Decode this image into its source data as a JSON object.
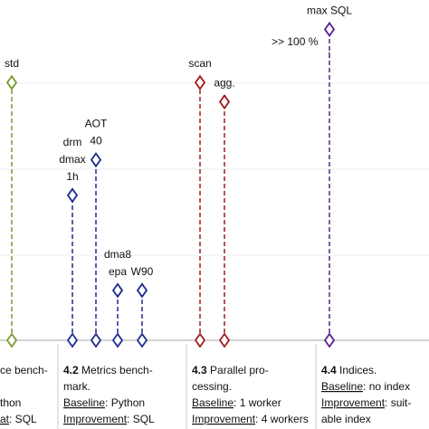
{
  "chart_data": {
    "type": "lollipop",
    "ylim": [
      0,
      100
    ],
    "groups": [
      {
        "color": "#7a9a2e",
        "stems": [
          {
            "label": [
              "std"
            ],
            "value": 80
          }
        ]
      },
      {
        "color": "#1f2a8c",
        "stems": [
          {
            "label": [
              "drm",
              "dmax",
              "1h"
            ],
            "value": 45
          },
          {
            "label": [
              "AOT",
              "40"
            ],
            "value": 56
          },
          {
            "label": [
              "dma8",
              "epa"
            ],
            "value": 15.5
          },
          {
            "label": [
              "W90"
            ],
            "value": 15.5
          }
        ]
      },
      {
        "color": "#a01c1c",
        "stems": [
          {
            "label": [
              "scan"
            ],
            "value": 80
          },
          {
            "label": [
              "agg."
            ],
            "value": 74
          }
        ]
      },
      {
        "color": "#5a1f8c",
        "stems": [
          {
            "label": [
              "max SQL"
            ],
            "value": 96.5
          }
        ]
      }
    ],
    "annotations": [
      ">> 100 %",
      ":"
    ],
    "sections": [
      {
        "lines": [
          [
            {
              "text": "ce bench-"
            }
          ],
          [],
          [
            {
              "text": "thon",
              "underline": false
            }
          ],
          [
            {
              "text": "at",
              "underline": true
            },
            {
              "text": ": SQL"
            }
          ]
        ]
      },
      {
        "lines": [
          [
            {
              "text": "4.2",
              "bold": true
            },
            {
              "text": " Metrics bench-"
            }
          ],
          [
            {
              "text": "mark."
            }
          ],
          [
            {
              "text": "Baseline",
              "underline": true
            },
            {
              "text": ": Python"
            }
          ],
          [
            {
              "text": "Improvement",
              "underline": true
            },
            {
              "text": ": SQL"
            }
          ]
        ]
      },
      {
        "lines": [
          [
            {
              "text": "4.3",
              "bold": true
            },
            {
              "text": " Parallel pro-"
            }
          ],
          [
            {
              "text": "cessing."
            }
          ],
          [
            {
              "text": "Baseline",
              "underline": true
            },
            {
              "text": ": 1 worker"
            }
          ],
          [
            {
              "text": "Improvement",
              "underline": true
            },
            {
              "text": ": 4 workers"
            }
          ]
        ]
      },
      {
        "lines": [
          [
            {
              "text": "4.4",
              "bold": true
            },
            {
              "text": " Indices."
            }
          ],
          [
            {
              "text": "Baseline",
              "underline": true
            },
            {
              "text": ": no index"
            }
          ],
          [
            {
              "text": "Improvement",
              "underline": true
            },
            {
              "text": ": suit-"
            }
          ],
          [
            {
              "text": "able index"
            }
          ]
        ]
      }
    ]
  }
}
